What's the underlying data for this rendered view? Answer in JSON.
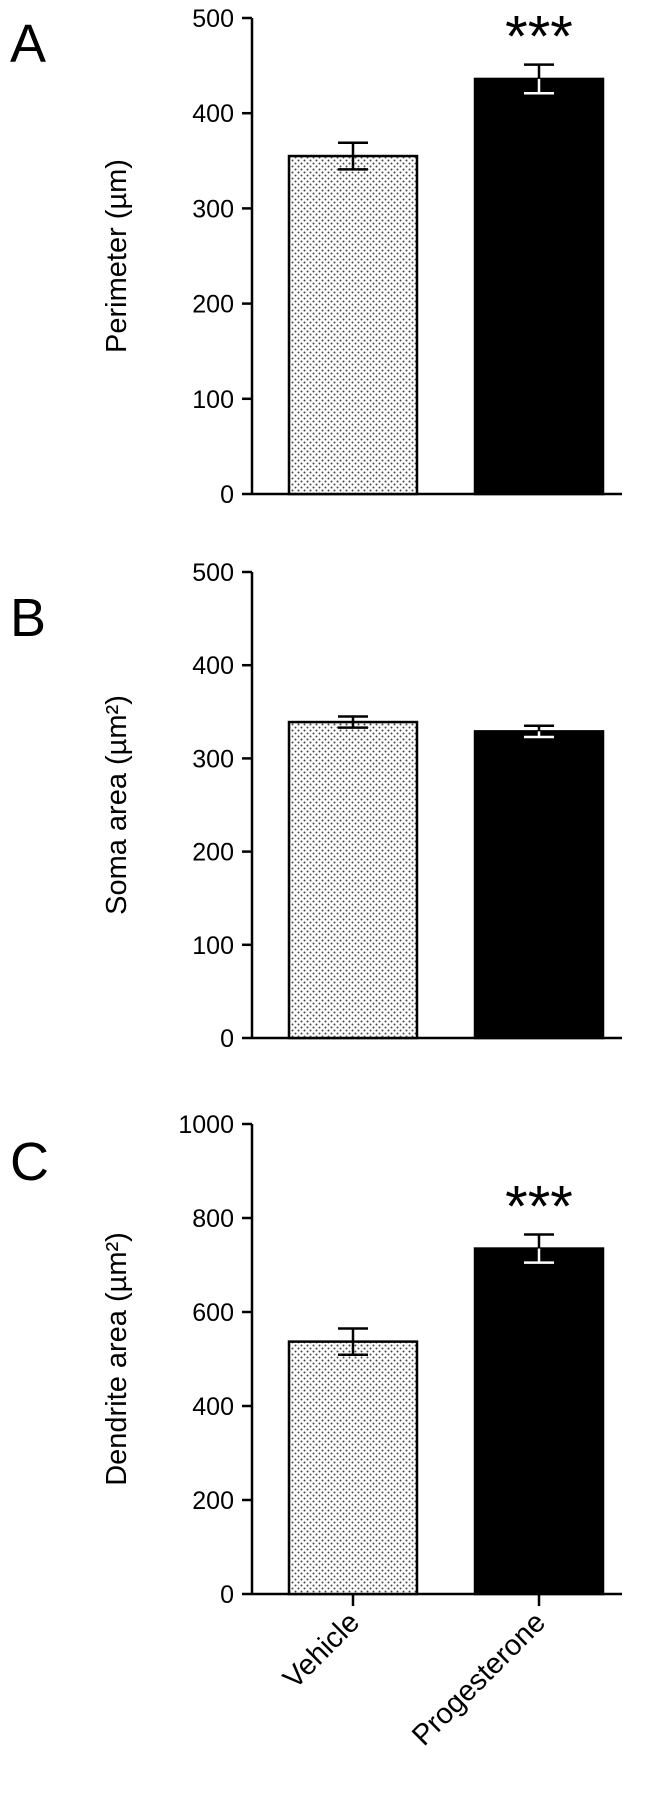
{
  "chart_data": [
    {
      "type": "bar",
      "panel": "A",
      "categories": [
        "Vehicle",
        "Progesterone"
      ],
      "values": [
        355,
        436
      ],
      "errors": [
        14,
        15
      ],
      "significance": [
        "",
        "***"
      ],
      "ylabel": "Perimeter (µm)",
      "ylim": [
        0,
        500
      ],
      "yticks": [
        0,
        100,
        200,
        300,
        400,
        500
      ],
      "bar_fills": [
        "dotted",
        "#000000"
      ]
    },
    {
      "type": "bar",
      "panel": "B",
      "categories": [
        "Vehicle",
        "Progesterone"
      ],
      "values": [
        339,
        329
      ],
      "errors": [
        6,
        6
      ],
      "significance": [
        "",
        ""
      ],
      "ylabel": "Soma area (µm²)",
      "ylim": [
        0,
        500
      ],
      "yticks": [
        0,
        100,
        200,
        300,
        400,
        500
      ],
      "bar_fills": [
        "dotted",
        "#000000"
      ]
    },
    {
      "type": "bar",
      "panel": "C",
      "categories": [
        "Vehicle",
        "Progesterone"
      ],
      "values": [
        537,
        735
      ],
      "errors": [
        28,
        30
      ],
      "significance": [
        "",
        "***"
      ],
      "ylabel": "Dendrite area (µm²)",
      "ylim": [
        0,
        1000
      ],
      "yticks": [
        0,
        200,
        400,
        600,
        800,
        1000
      ],
      "bar_fills": [
        "dotted",
        "#000000"
      ]
    }
  ]
}
